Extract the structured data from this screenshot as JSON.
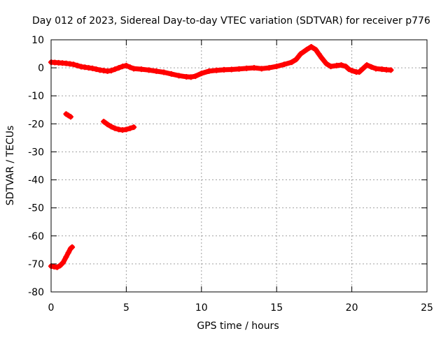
{
  "chart_data": {
    "type": "scatter",
    "title": "Day 012 of 2023, Sidereal Day-to-day VTEC variation (SDTVAR) for receiver p776",
    "xlabel": "GPS time / hours",
    "ylabel": "SDTVAR / TECUs",
    "xlim": [
      0,
      25
    ],
    "ylim": [
      -80,
      10
    ],
    "x_ticks": [
      0,
      5,
      10,
      15,
      20,
      25
    ],
    "y_ticks": [
      10,
      0,
      -10,
      -20,
      -30,
      -40,
      -50,
      -60,
      -70,
      -80
    ],
    "grid": true,
    "legend": "none",
    "series": [
      {
        "name": "main band",
        "color": "#ff0000",
        "points": [
          [
            0.0,
            2.0
          ],
          [
            0.25,
            1.9
          ],
          [
            0.5,
            1.8
          ],
          [
            0.75,
            1.7
          ],
          [
            1.0,
            1.6
          ],
          [
            1.25,
            1.4
          ],
          [
            1.5,
            1.2
          ],
          [
            1.75,
            0.8
          ],
          [
            2.0,
            0.4
          ],
          [
            2.25,
            0.2
          ],
          [
            2.5,
            0.0
          ],
          [
            2.75,
            -0.2
          ],
          [
            3.0,
            -0.5
          ],
          [
            3.25,
            -0.8
          ],
          [
            3.5,
            -1.0
          ],
          [
            3.75,
            -1.2
          ],
          [
            4.0,
            -1.0
          ],
          [
            4.25,
            -0.5
          ],
          [
            4.5,
            0.0
          ],
          [
            4.75,
            0.5
          ],
          [
            5.0,
            0.8
          ],
          [
            5.25,
            0.2
          ],
          [
            5.5,
            -0.3
          ],
          [
            6.0,
            -0.5
          ],
          [
            6.5,
            -0.8
          ],
          [
            7.0,
            -1.2
          ],
          [
            7.5,
            -1.6
          ],
          [
            8.0,
            -2.2
          ],
          [
            8.5,
            -2.8
          ],
          [
            9.0,
            -3.2
          ],
          [
            9.3,
            -3.3
          ],
          [
            9.6,
            -3.0
          ],
          [
            10.0,
            -2.0
          ],
          [
            10.5,
            -1.2
          ],
          [
            11.0,
            -0.9
          ],
          [
            11.5,
            -0.7
          ],
          [
            12.0,
            -0.6
          ],
          [
            12.5,
            -0.4
          ],
          [
            13.0,
            -0.2
          ],
          [
            13.5,
            0.0
          ],
          [
            14.0,
            -0.3
          ],
          [
            14.5,
            0.0
          ],
          [
            15.0,
            0.5
          ],
          [
            15.5,
            1.2
          ],
          [
            16.0,
            2.0
          ],
          [
            16.3,
            3.0
          ],
          [
            16.6,
            5.0
          ],
          [
            17.0,
            6.5
          ],
          [
            17.3,
            7.5
          ],
          [
            17.6,
            6.5
          ],
          [
            17.8,
            5.0
          ],
          [
            18.0,
            3.5
          ],
          [
            18.3,
            1.5
          ],
          [
            18.6,
            0.5
          ],
          [
            19.0,
            0.8
          ],
          [
            19.3,
            1.0
          ],
          [
            19.6,
            0.5
          ],
          [
            19.8,
            -0.5
          ],
          [
            20.0,
            -1.0
          ],
          [
            20.3,
            -1.5
          ],
          [
            20.5,
            -1.5
          ],
          [
            21.0,
            1.0
          ],
          [
            21.3,
            0.3
          ],
          [
            21.6,
            -0.3
          ],
          [
            22.0,
            -0.5
          ],
          [
            22.3,
            -0.7
          ],
          [
            22.6,
            -0.8
          ]
        ]
      },
      {
        "name": "short segment near 1 h",
        "color": "#ff0000",
        "points": [
          [
            1.0,
            -16.5
          ],
          [
            1.15,
            -17.0
          ],
          [
            1.3,
            -17.5
          ]
        ]
      },
      {
        "name": "segment 3.5 to 5.5 h",
        "color": "#ff0000",
        "points": [
          [
            3.5,
            -19.2
          ],
          [
            3.75,
            -20.2
          ],
          [
            4.0,
            -21.0
          ],
          [
            4.25,
            -21.6
          ],
          [
            4.5,
            -22.0
          ],
          [
            4.75,
            -22.2
          ],
          [
            5.0,
            -22.0
          ],
          [
            5.25,
            -21.6
          ],
          [
            5.5,
            -21.2
          ]
        ]
      },
      {
        "name": "rising segment 0 to 1.4 h",
        "color": "#ff0000",
        "points": [
          [
            0.0,
            -70.8
          ],
          [
            0.2,
            -71.0
          ],
          [
            0.4,
            -71.2
          ],
          [
            0.6,
            -70.6
          ],
          [
            0.8,
            -69.5
          ],
          [
            1.0,
            -67.5
          ],
          [
            1.15,
            -66.0
          ],
          [
            1.3,
            -64.5
          ],
          [
            1.4,
            -64.0
          ]
        ]
      }
    ]
  }
}
